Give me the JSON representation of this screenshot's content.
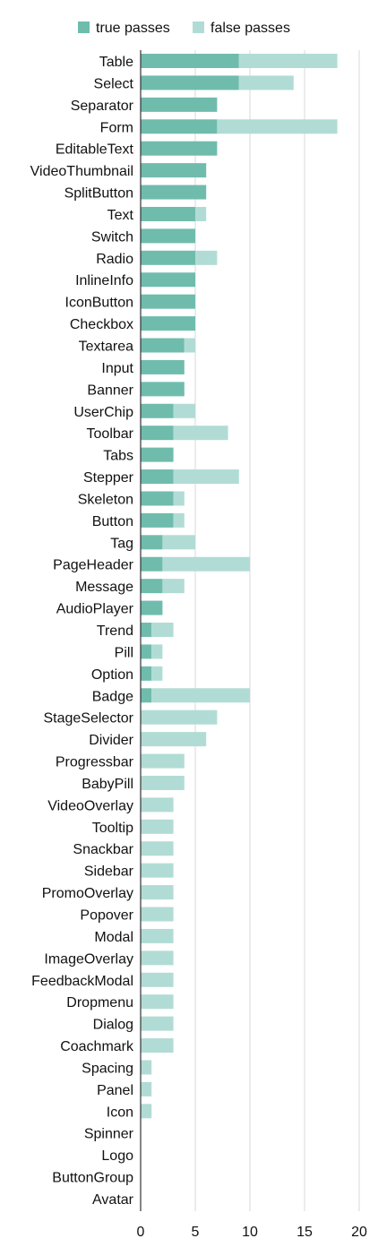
{
  "chart_data": {
    "type": "bar",
    "orientation": "horizontal",
    "stacked": true,
    "categories": [
      "Table",
      "Select",
      "Separator",
      "Form",
      "EditableText",
      "VideoThumbnail",
      "SplitButton",
      "Text",
      "Switch",
      "Radio",
      "InlineInfo",
      "IconButton",
      "Checkbox",
      "Textarea",
      "Input",
      "Banner",
      "UserChip",
      "Toolbar",
      "Tabs",
      "Stepper",
      "Skeleton",
      "Button",
      "Tag",
      "PageHeader",
      "Message",
      "AudioPlayer",
      "Trend",
      "Pill",
      "Option",
      "Badge",
      "StageSelector",
      "Divider",
      "Progressbar",
      "BabyPill",
      "VideoOverlay",
      "Tooltip",
      "Snackbar",
      "Sidebar",
      "PromoOverlay",
      "Popover",
      "Modal",
      "ImageOverlay",
      "FeedbackModal",
      "Dropmenu",
      "Dialog",
      "Coachmark",
      "Spacing",
      "Panel",
      "Icon",
      "Spinner",
      "Logo",
      "ButtonGroup",
      "Avatar"
    ],
    "series": [
      {
        "name": "true passes",
        "color": "#6fbcad",
        "values": [
          9,
          9,
          7,
          7,
          7,
          6,
          6,
          5,
          5,
          5,
          5,
          5,
          5,
          4,
          4,
          4,
          3,
          3,
          3,
          3,
          3,
          3,
          2,
          2,
          2,
          2,
          1,
          1,
          1,
          1,
          0,
          0,
          0,
          0,
          0,
          0,
          0,
          0,
          0,
          0,
          0,
          0,
          0,
          0,
          0,
          0,
          0,
          0,
          0,
          0,
          0,
          0,
          0
        ]
      },
      {
        "name": "false passes",
        "color": "#b1dcd5",
        "values": [
          9,
          5,
          0,
          11,
          0,
          0,
          0,
          1,
          0,
          2,
          0,
          0,
          0,
          1,
          0,
          0,
          2,
          5,
          0,
          6,
          1,
          1,
          3,
          8,
          2,
          0,
          2,
          1,
          1,
          9,
          7,
          6,
          4,
          4,
          3,
          3,
          3,
          3,
          3,
          3,
          3,
          3,
          3,
          3,
          3,
          3,
          1,
          1,
          1,
          0,
          0,
          0,
          0
        ]
      }
    ],
    "xlim": [
      0,
      20
    ],
    "xticks": [
      0,
      5,
      10,
      15,
      20
    ],
    "grid": true,
    "legend_position": "top"
  }
}
